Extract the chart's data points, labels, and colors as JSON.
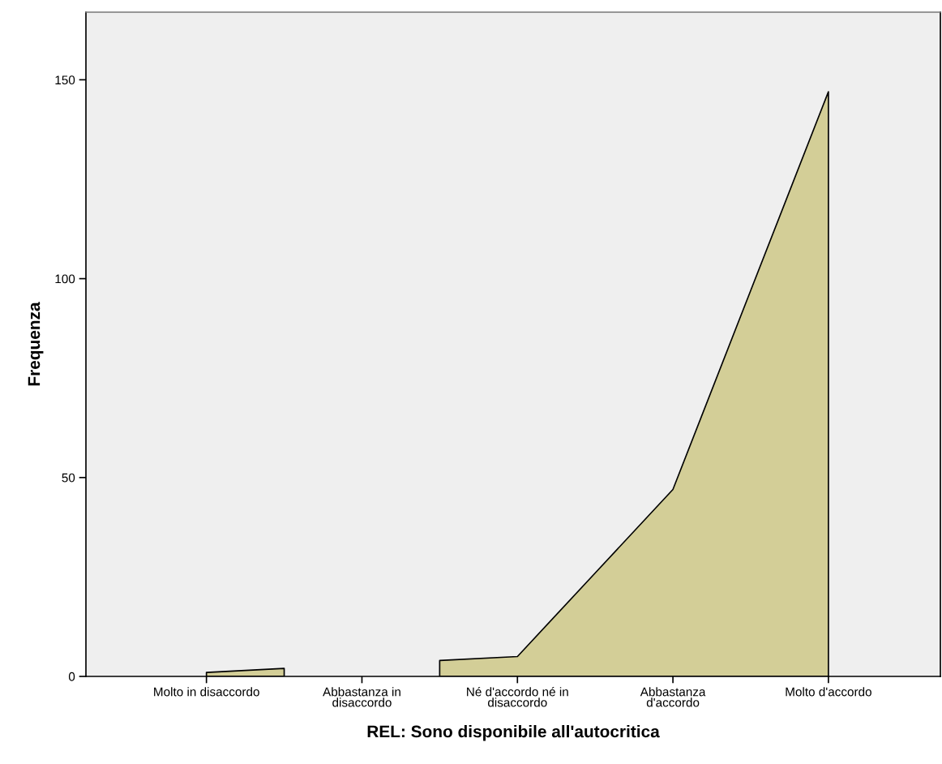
{
  "chart_data": {
    "type": "area",
    "xlabel": "REL: Sono disponibile all'autocritica",
    "ylabel": "Frequenza",
    "categories": [
      "Molto in disaccordo",
      null,
      "Abbastanza in\ndisaccordo",
      null,
      "Né d'accordo né in\ndisaccordo",
      null,
      "Abbastanza\nd'accordo",
      null,
      "Molto d'accordo"
    ],
    "series": [
      {
        "color": "#d3ce97",
        "values": [
          1,
          2,
          null,
          4,
          5,
          26,
          47,
          97,
          147
        ]
      }
    ],
    "ylim": [
      0,
      167
    ],
    "yticks": [
      0,
      50,
      100,
      150
    ],
    "grid": false
  }
}
